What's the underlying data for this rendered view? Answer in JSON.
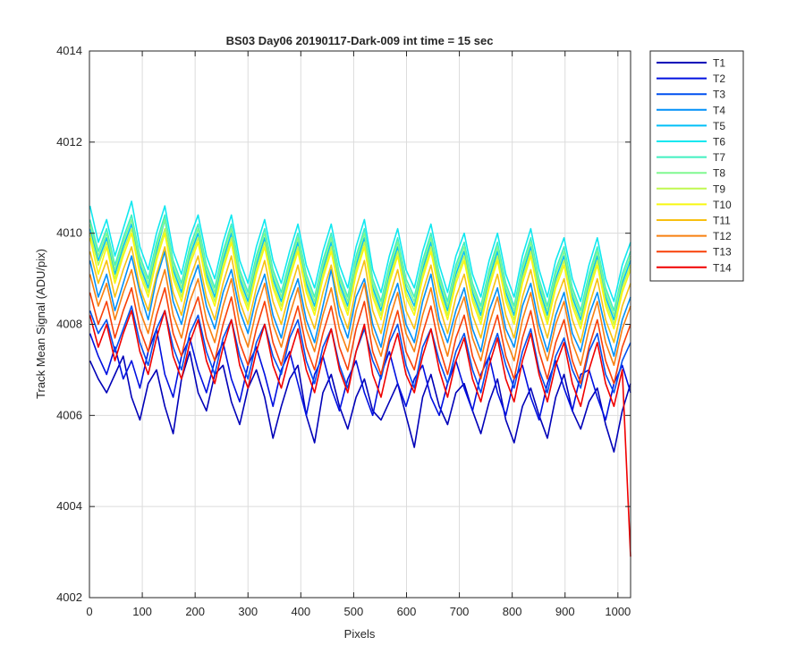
{
  "chart_data": {
    "type": "line",
    "title": "BS03 Day06 20190117-Dark-009 int time = 15 sec",
    "xlabel": "Pixels",
    "ylabel": "Track Mean Signal (ADU/pix)",
    "xlim": [
      0,
      1024
    ],
    "ylim": [
      4002,
      4014
    ],
    "xticks": [
      0,
      100,
      200,
      300,
      400,
      500,
      600,
      700,
      800,
      900,
      1000
    ],
    "yticks": [
      4002,
      4004,
      4006,
      4008,
      4010,
      4012,
      4014
    ],
    "grid": true,
    "legend_position": "outside-top-right",
    "sampling": "per-series samples are evenly spaced over pixels 1-1024",
    "series": [
      {
        "name": "T1",
        "color": "#0000b8",
        "values": [
          4007.2,
          4006.8,
          4006.5,
          4006.9,
          4007.3,
          4006.4,
          4005.9,
          4006.7,
          4007.0,
          4006.2,
          4005.6,
          4006.8,
          4007.4,
          4006.5,
          4006.1,
          4006.9,
          4007.1,
          4006.3,
          4005.8,
          4006.6,
          4007.0,
          4006.4,
          4005.5,
          4006.2,
          4006.8,
          4007.1,
          4006.0,
          4005.4,
          4006.5,
          4006.9,
          4006.2,
          4005.7,
          4006.4,
          4006.8,
          4006.1,
          4005.9,
          4006.3,
          4006.7,
          4006.0,
          4005.3,
          4006.4,
          4006.9,
          4006.2,
          4005.8,
          4006.5,
          4006.7,
          4006.1,
          4005.6,
          4006.3,
          4006.8,
          4005.9,
          4005.4,
          4006.2,
          4006.6,
          4006.0,
          4005.5,
          4006.4,
          4006.9,
          4006.1,
          4005.7,
          4006.3,
          4006.6,
          4005.8,
          4005.2,
          4006.1,
          4006.7
        ]
      },
      {
        "name": "T2",
        "color": "#0010e0",
        "values": [
          4007.8,
          4007.3,
          4006.9,
          4007.5,
          4006.8,
          4007.2,
          4006.6,
          4007.4,
          4007.9,
          4006.9,
          4006.4,
          4007.3,
          4007.7,
          4007.0,
          4006.5,
          4007.2,
          4007.6,
          4006.8,
          4006.3,
          4007.1,
          4007.5,
          4006.9,
          4006.2,
          4007.0,
          4007.4,
          4006.7,
          4006.0,
          4006.9,
          4007.3,
          4006.6,
          4006.1,
          4006.8,
          4007.2,
          4006.5,
          4006.0,
          4006.9,
          4007.4,
          4006.7,
          4006.2,
          4006.8,
          4007.1,
          4006.4,
          4006.0,
          4006.7,
          4007.2,
          4006.6,
          4006.1,
          4006.9,
          4007.3,
          4006.5,
          4006.0,
          4006.8,
          4007.1,
          4006.4,
          4005.9,
          4006.7,
          4007.2,
          4006.6,
          4006.1,
          4006.9,
          4007.0,
          4006.4,
          4005.9,
          4006.7,
          4007.1,
          4006.5
        ]
      },
      {
        "name": "T3",
        "color": "#0050f0",
        "values": [
          4008.3,
          4007.8,
          4008.1,
          4007.4,
          4007.9,
          4008.4,
          4007.6,
          4007.1,
          4007.9,
          4008.3,
          4007.5,
          4007.0,
          4007.8,
          4008.2,
          4007.4,
          4006.9,
          4007.7,
          4008.1,
          4007.3,
          4006.8,
          4007.6,
          4008.0,
          4007.3,
          4006.9,
          4007.7,
          4008.1,
          4007.2,
          4006.7,
          4007.5,
          4007.9,
          4007.1,
          4006.6,
          4007.4,
          4007.9,
          4007.2,
          4006.8,
          4007.6,
          4008.0,
          4007.1,
          4006.6,
          4007.5,
          4007.9,
          4007.2,
          4006.7,
          4007.4,
          4007.8,
          4007.0,
          4006.5,
          4007.3,
          4007.8,
          4007.1,
          4006.6,
          4007.4,
          4007.9,
          4007.0,
          4006.5,
          4007.3,
          4007.7,
          4007.0,
          4006.6,
          4007.4,
          4007.8,
          4006.9,
          4006.5,
          4007.2,
          4007.6
        ]
      },
      {
        "name": "T4",
        "color": "#0090f8",
        "values": [
          4009.4,
          4008.6,
          4009.1,
          4008.3,
          4008.9,
          4009.5,
          4008.7,
          4008.1,
          4009.0,
          4009.6,
          4008.5,
          4008.0,
          4008.8,
          4009.3,
          4008.4,
          4007.9,
          4008.7,
          4009.2,
          4008.3,
          4007.8,
          4008.6,
          4009.1,
          4008.2,
          4007.7,
          4008.5,
          4009.0,
          4008.1,
          4007.6,
          4008.4,
          4009.2,
          4008.2,
          4007.7,
          4008.6,
          4009.0,
          4008.0,
          4007.5,
          4008.4,
          4008.9,
          4008.0,
          4007.6,
          4008.5,
          4009.1,
          4008.1,
          4007.6,
          4008.3,
          4008.8,
          4007.9,
          4007.4,
          4008.3,
          4008.8,
          4007.9,
          4007.5,
          4008.4,
          4008.9,
          4008.0,
          4007.4,
          4008.2,
          4008.7,
          4007.8,
          4007.4,
          4008.2,
          4008.7,
          4007.9,
          4007.3,
          4008.1,
          4008.6
        ]
      },
      {
        "name": "T5",
        "color": "#00c0f8",
        "values": [
          4010.1,
          4009.4,
          4009.9,
          4009.1,
          4009.7,
          4010.2,
          4009.3,
          4008.8,
          4009.6,
          4010.3,
          4009.2,
          4008.7,
          4009.5,
          4010.0,
          4009.1,
          4008.6,
          4009.4,
          4010.0,
          4009.0,
          4008.5,
          4009.3,
          4009.9,
          4009.0,
          4008.5,
          4009.2,
          4009.8,
          4008.9,
          4008.4,
          4009.2,
          4009.8,
          4008.9,
          4008.4,
          4009.3,
          4009.9,
          4008.8,
          4008.3,
          4009.1,
          4009.7,
          4008.8,
          4008.4,
          4009.2,
          4009.8,
          4008.9,
          4008.3,
          4009.1,
          4009.6,
          4008.7,
          4008.2,
          4009.0,
          4009.6,
          4008.7,
          4008.2,
          4009.1,
          4009.7,
          4008.8,
          4008.2,
          4009.0,
          4009.5,
          4008.6,
          4008.1,
          4008.9,
          4009.5,
          4008.6,
          4008.1,
          4008.9,
          4009.4
        ]
      },
      {
        "name": "T6",
        "color": "#10e8f0",
        "values": [
          4010.6,
          4009.8,
          4010.3,
          4009.5,
          4010.1,
          4010.7,
          4009.7,
          4009.2,
          4010.0,
          4010.6,
          4009.6,
          4009.1,
          4009.9,
          4010.4,
          4009.5,
          4009.0,
          4009.8,
          4010.4,
          4009.4,
          4008.9,
          4009.7,
          4010.3,
          4009.4,
          4008.9,
          4009.6,
          4010.2,
          4009.3,
          4008.8,
          4009.6,
          4010.2,
          4009.3,
          4008.8,
          4009.7,
          4010.3,
          4009.2,
          4008.7,
          4009.5,
          4010.1,
          4009.2,
          4008.8,
          4009.6,
          4010.2,
          4009.3,
          4008.7,
          4009.5,
          4010.0,
          4009.1,
          4008.6,
          4009.4,
          4010.0,
          4009.1,
          4008.6,
          4009.5,
          4010.1,
          4009.2,
          4008.6,
          4009.4,
          4009.9,
          4009.0,
          4008.5,
          4009.3,
          4009.9,
          4009.0,
          4008.5,
          4009.3,
          4009.8
        ]
      },
      {
        "name": "T7",
        "color": "#40f0c0",
        "values": [
          4010.3,
          4009.6,
          4010.1,
          4009.3,
          4009.9,
          4010.4,
          4009.5,
          4009.0,
          4009.8,
          4010.4,
          4009.4,
          4008.9,
          4009.7,
          4010.2,
          4009.3,
          4008.8,
          4009.6,
          4010.2,
          4009.2,
          4008.7,
          4009.5,
          4010.1,
          4009.2,
          4008.7,
          4009.4,
          4010.0,
          4009.1,
          4008.6,
          4009.4,
          4010.0,
          4009.1,
          4008.6,
          4009.5,
          4010.1,
          4009.0,
          4008.5,
          4009.3,
          4009.9,
          4009.0,
          4008.6,
          4009.4,
          4010.0,
          4009.1,
          4008.5,
          4009.3,
          4009.8,
          4008.9,
          4008.4,
          4009.2,
          4009.8,
          4008.9,
          4008.4,
          4009.3,
          4009.9,
          4009.0,
          4008.4,
          4009.2,
          4009.7,
          4008.8,
          4008.3,
          4009.1,
          4009.7,
          4008.8,
          4008.3,
          4009.1,
          4009.6
        ]
      },
      {
        "name": "T8",
        "color": "#80f890",
        "values": [
          4010.2,
          4009.5,
          4010.0,
          4009.2,
          4009.8,
          4010.3,
          4009.4,
          4008.9,
          4009.7,
          4010.3,
          4009.3,
          4008.8,
          4009.6,
          4010.1,
          4009.2,
          4008.7,
          4009.5,
          4010.1,
          4009.1,
          4008.6,
          4009.4,
          4010.0,
          4009.1,
          4008.6,
          4009.3,
          4009.9,
          4009.0,
          4008.5,
          4009.3,
          4009.9,
          4009.0,
          4008.5,
          4009.4,
          4010.0,
          4008.9,
          4008.4,
          4009.2,
          4009.8,
          4008.9,
          4008.5,
          4009.3,
          4009.9,
          4009.0,
          4008.4,
          4009.2,
          4009.7,
          4008.8,
          4008.3,
          4009.1,
          4009.7,
          4008.8,
          4008.3,
          4009.2,
          4009.8,
          4008.9,
          4008.3,
          4009.1,
          4009.6,
          4008.7,
          4008.2,
          4009.0,
          4009.6,
          4008.7,
          4008.2,
          4009.0,
          4009.5
        ]
      },
      {
        "name": "T9",
        "color": "#c0f850",
        "values": [
          4010.0,
          4009.3,
          4009.8,
          4009.0,
          4009.6,
          4010.1,
          4009.2,
          4008.7,
          4009.5,
          4010.1,
          4009.1,
          4008.6,
          4009.4,
          4009.9,
          4009.0,
          4008.5,
          4009.3,
          4009.9,
          4008.9,
          4008.4,
          4009.2,
          4009.8,
          4008.9,
          4008.4,
          4009.1,
          4009.7,
          4008.8,
          4008.3,
          4009.1,
          4009.7,
          4008.8,
          4008.3,
          4009.2,
          4009.8,
          4008.7,
          4008.2,
          4009.0,
          4009.6,
          4008.7,
          4008.3,
          4009.1,
          4009.7,
          4008.8,
          4008.2,
          4009.0,
          4009.5,
          4008.6,
          4008.1,
          4008.9,
          4009.5,
          4008.6,
          4008.1,
          4009.0,
          4009.6,
          4008.7,
          4008.1,
          4008.9,
          4009.4,
          4008.5,
          4008.0,
          4008.8,
          4009.4,
          4008.5,
          4008.0,
          4008.8,
          4009.3
        ]
      },
      {
        "name": "T10",
        "color": "#f8f810",
        "values": [
          4009.9,
          4009.1,
          4009.7,
          4008.9,
          4009.5,
          4010.0,
          4009.1,
          4008.6,
          4009.4,
          4010.0,
          4009.0,
          4008.5,
          4009.3,
          4009.8,
          4008.9,
          4008.4,
          4009.2,
          4009.8,
          4008.8,
          4008.3,
          4009.1,
          4009.7,
          4008.8,
          4008.3,
          4009.0,
          4009.6,
          4008.7,
          4008.2,
          4009.0,
          4009.6,
          4008.7,
          4008.2,
          4009.1,
          4009.7,
          4008.6,
          4008.1,
          4008.9,
          4009.5,
          4008.6,
          4008.2,
          4009.0,
          4009.6,
          4008.7,
          4008.1,
          4008.9,
          4009.4,
          4008.5,
          4008.0,
          4008.8,
          4009.4,
          4008.5,
          4008.0,
          4008.9,
          4009.5,
          4008.6,
          4008.0,
          4008.8,
          4009.3,
          4008.4,
          4007.9,
          4008.7,
          4009.3,
          4008.4,
          4007.9,
          4008.7,
          4009.2
        ]
      },
      {
        "name": "T11",
        "color": "#f8c010",
        "values": [
          4009.6,
          4008.9,
          4009.4,
          4008.6,
          4009.2,
          4009.7,
          4008.8,
          4008.3,
          4009.1,
          4009.7,
          4008.7,
          4008.2,
          4009.0,
          4009.5,
          4008.6,
          4008.1,
          4008.9,
          4009.5,
          4008.5,
          4008.0,
          4008.8,
          4009.4,
          4008.5,
          4008.0,
          4008.7,
          4009.3,
          4008.4,
          4007.9,
          4008.7,
          4009.3,
          4008.4,
          4007.9,
          4008.8,
          4009.4,
          4008.3,
          4007.8,
          4008.6,
          4009.2,
          4008.3,
          4007.9,
          4008.7,
          4009.3,
          4008.4,
          4007.8,
          4008.6,
          4009.1,
          4008.2,
          4007.7,
          4008.5,
          4009.1,
          4008.2,
          4007.7,
          4008.6,
          4009.2,
          4008.3,
          4007.7,
          4008.5,
          4009.0,
          4008.1,
          4007.6,
          4008.4,
          4009.0,
          4008.1,
          4007.6,
          4008.4,
          4008.9
        ]
      },
      {
        "name": "T12",
        "color": "#f88010",
        "values": [
          4009.1,
          4008.4,
          4008.9,
          4008.1,
          4008.7,
          4009.2,
          4008.3,
          4007.8,
          4008.6,
          4009.2,
          4008.2,
          4007.7,
          4008.5,
          4009.0,
          4008.1,
          4007.6,
          4008.4,
          4009.0,
          4008.0,
          4007.5,
          4008.3,
          4008.9,
          4008.0,
          4007.5,
          4008.2,
          4008.8,
          4007.9,
          4007.4,
          4008.2,
          4008.8,
          4007.9,
          4007.4,
          4008.3,
          4008.9,
          4007.8,
          4007.3,
          4008.1,
          4008.7,
          4007.8,
          4007.4,
          4008.2,
          4008.8,
          4007.9,
          4007.3,
          4008.1,
          4008.6,
          4007.7,
          4007.2,
          4008.0,
          4008.6,
          4007.7,
          4007.2,
          4008.1,
          4008.7,
          4007.8,
          4007.2,
          4008.0,
          4008.5,
          4007.6,
          4007.1,
          4007.9,
          4008.5,
          4007.6,
          4007.1,
          4007.9,
          4008.4
        ]
      },
      {
        "name": "T13",
        "color": "#f84008",
        "values": [
          4008.7,
          4008.0,
          4008.5,
          4007.7,
          4008.3,
          4008.8,
          4007.9,
          4007.4,
          4008.2,
          4008.8,
          4007.8,
          4007.3,
          4008.1,
          4008.6,
          4007.7,
          4007.2,
          4008.0,
          4008.6,
          4007.6,
          4007.1,
          4007.9,
          4008.5,
          4007.6,
          4007.1,
          4007.8,
          4008.4,
          4007.5,
          4007.0,
          4007.8,
          4008.4,
          4007.5,
          4007.0,
          4007.9,
          4008.5,
          4007.4,
          4006.9,
          4007.7,
          4008.3,
          4007.4,
          4007.0,
          4007.8,
          4008.4,
          4007.5,
          4006.9,
          4007.7,
          4008.2,
          4007.3,
          4006.8,
          4007.6,
          4008.2,
          4007.3,
          4006.8,
          4007.7,
          4008.3,
          4007.4,
          4006.8,
          4007.6,
          4008.1,
          4007.2,
          4006.7,
          4007.5,
          4008.1,
          4007.2,
          4006.7,
          4007.5,
          4008.0
        ]
      },
      {
        "name": "T14",
        "color": "#f00000",
        "values": [
          4008.2,
          4007.5,
          4008.0,
          4007.2,
          4007.8,
          4008.3,
          4007.4,
          4006.9,
          4007.7,
          4008.3,
          4007.3,
          4006.8,
          4007.6,
          4008.1,
          4007.2,
          4006.7,
          4007.5,
          4008.1,
          4007.1,
          4006.6,
          4007.4,
          4008.0,
          4007.1,
          4006.6,
          4007.3,
          4007.9,
          4007.0,
          4006.5,
          4007.3,
          4007.9,
          4007.0,
          4006.5,
          4007.4,
          4008.0,
          4006.9,
          4006.4,
          4007.2,
          4007.8,
          4006.9,
          4006.5,
          4007.3,
          4007.9,
          4007.0,
          4006.4,
          4007.2,
          4007.7,
          4006.8,
          4006.3,
          4007.1,
          4007.7,
          4006.8,
          4006.3,
          4007.2,
          4007.8,
          4006.9,
          4006.3,
          4007.1,
          4007.6,
          4006.7,
          4006.2,
          4007.0,
          4007.6,
          4006.7,
          4006.2,
          4007.0,
          4002.9
        ]
      }
    ]
  }
}
